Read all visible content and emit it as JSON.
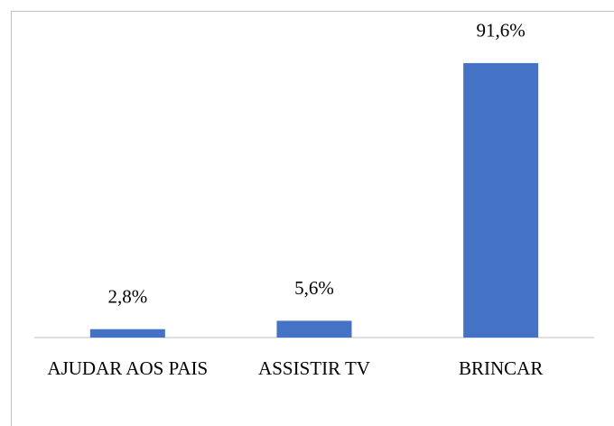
{
  "chart_data": {
    "type": "bar",
    "categories": [
      "AJUDAR AOS PAIS",
      "ASSISTIR TV",
      "BRINCAR"
    ],
    "values": [
      2.8,
      5.6,
      91.6
    ],
    "value_labels": [
      "2,8%",
      "5,6%",
      "91,6%"
    ],
    "color": "#4472c4"
  }
}
